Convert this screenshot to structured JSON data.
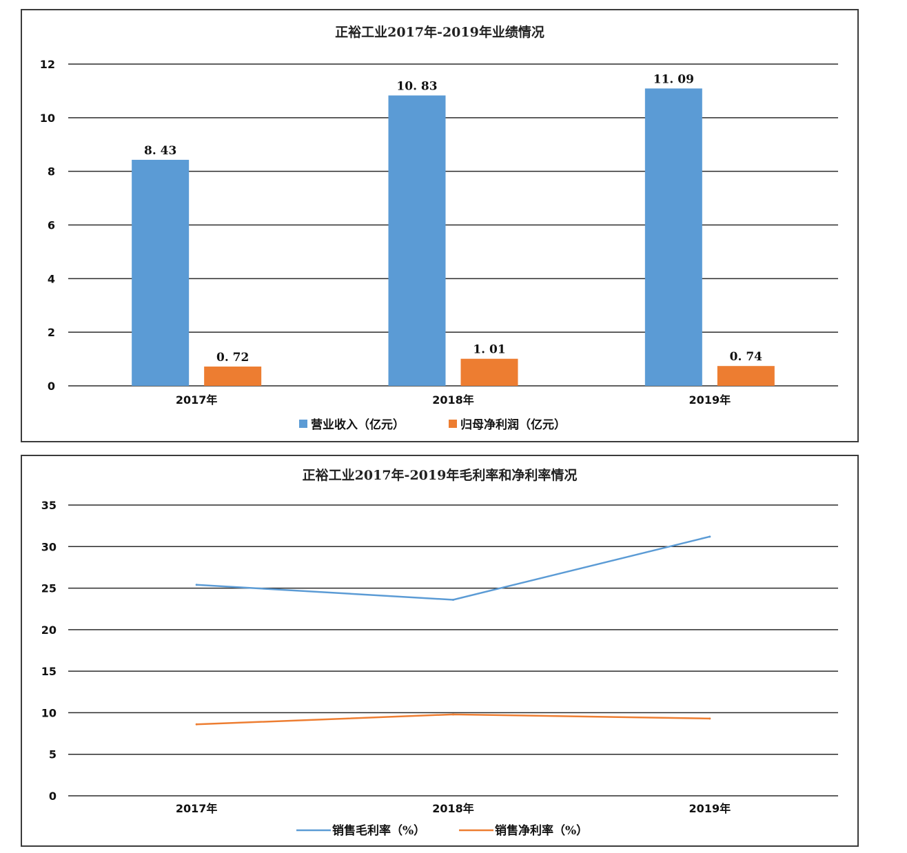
{
  "chart_data": [
    {
      "type": "bar",
      "title": "正裕工业2017年-2019年业绩情况",
      "categories": [
        "2017年",
        "2018年",
        "2019年"
      ],
      "series": [
        {
          "name": "营业收入（亿元）",
          "values": [
            8.43,
            10.83,
            11.09
          ],
          "labels": [
            "8. 43",
            "10. 83",
            "11. 09"
          ],
          "color": "#5b9bd5"
        },
        {
          "name": "归母净利润（亿元）",
          "values": [
            0.72,
            1.01,
            0.74
          ],
          "labels": [
            "0. 72",
            "1. 01",
            "0. 74"
          ],
          "color": "#ed7d31"
        }
      ],
      "ylim": [
        0,
        12
      ],
      "yticks": [
        "0",
        "2",
        "4",
        "6",
        "8",
        "10",
        "12"
      ],
      "grid": true,
      "legend": "bottom"
    },
    {
      "type": "line",
      "title": "正裕工业2017年-2019年毛利率和净利率情况",
      "categories": [
        "2017年",
        "2018年",
        "2019年"
      ],
      "series": [
        {
          "name": "销售毛利率（%）",
          "values": [
            25.4,
            23.6,
            31.2
          ],
          "color": "#5b9bd5"
        },
        {
          "name": "销售净利率（%）",
          "values": [
            8.6,
            9.8,
            9.3
          ],
          "color": "#ed7d31"
        }
      ],
      "ylim": [
        0,
        35
      ],
      "yticks": [
        "0",
        "5",
        "10",
        "15",
        "20",
        "25",
        "30",
        "35"
      ],
      "grid": true,
      "legend": "bottom"
    }
  ]
}
